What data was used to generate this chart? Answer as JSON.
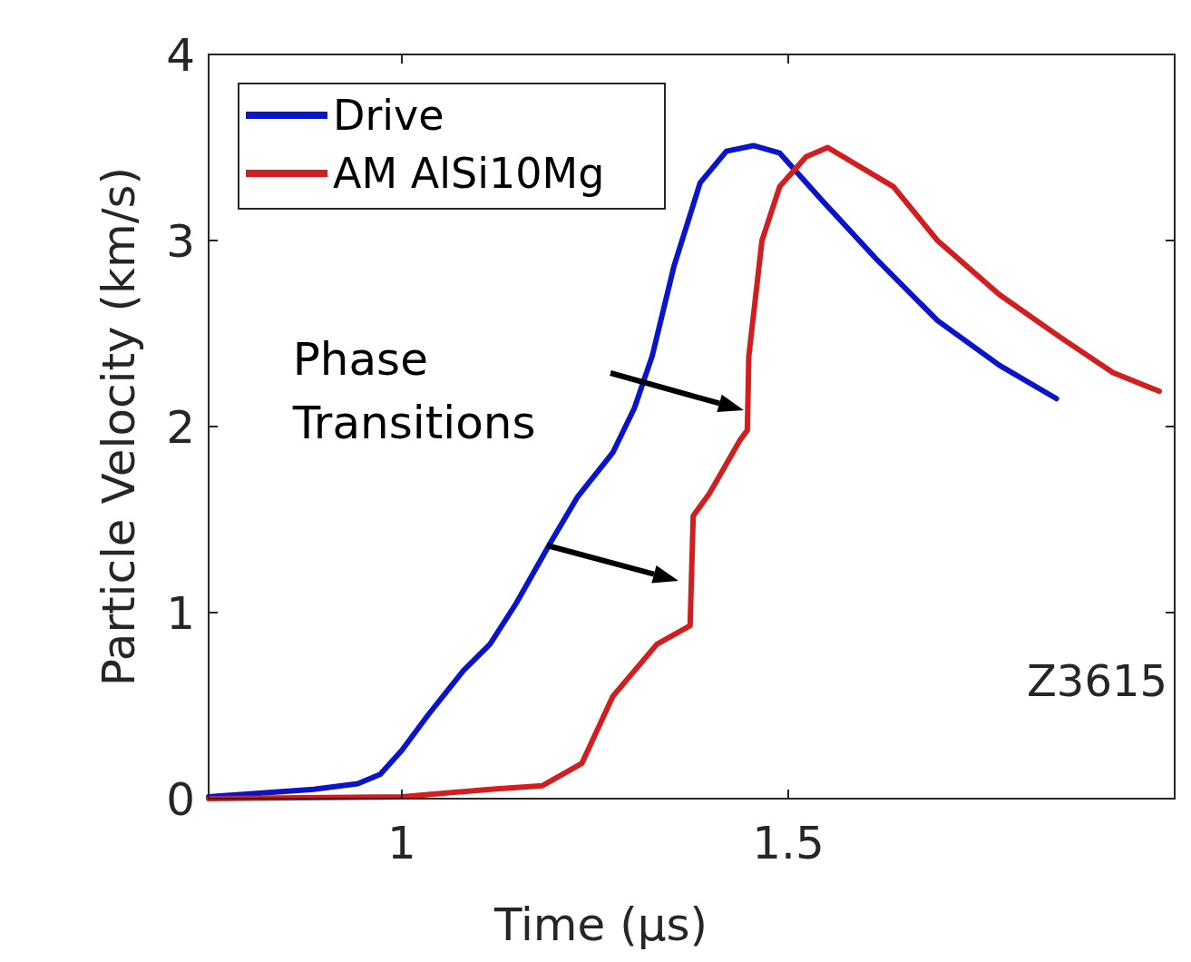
{
  "chart_data": {
    "type": "line",
    "xlabel": "Time (μs)",
    "ylabel": "Particle Velocity (km/s)",
    "xlim": [
      0.75,
      2
    ],
    "ylim": [
      0,
      4
    ],
    "xticks": [
      1,
      1.5
    ],
    "yticks": [
      0,
      1,
      2,
      3,
      4
    ],
    "grid": false,
    "legend": "top left",
    "line_style": "solid",
    "marker": "none",
    "annotations": [
      "Phase Transitions",
      "Z3615"
    ],
    "series": [
      {
        "name": "Drive",
        "color": "#0a14c8",
        "x": [
          0.75,
          0.886,
          0.943,
          0.972,
          1.0,
          1.034,
          1.08,
          1.114,
          1.148,
          1.193,
          1.227,
          1.273,
          1.301,
          1.324,
          1.352,
          1.386,
          1.42,
          1.455,
          1.489,
          1.545,
          1.614,
          1.693,
          1.773,
          1.847
        ],
        "values": [
          0.01,
          0.05,
          0.08,
          0.13,
          0.26,
          0.45,
          0.69,
          0.83,
          1.05,
          1.38,
          1.62,
          1.86,
          2.1,
          2.38,
          2.86,
          3.31,
          3.48,
          3.51,
          3.47,
          3.21,
          2.9,
          2.57,
          2.33,
          2.15
        ]
      },
      {
        "name": "AM AlSi10Mg",
        "color": "#d21e1e",
        "x": [
          0.75,
          1.0,
          1.114,
          1.182,
          1.233,
          1.273,
          1.33,
          1.373,
          1.377,
          1.398,
          1.438,
          1.447,
          1.449,
          1.466,
          1.489,
          1.523,
          1.551,
          1.636,
          1.693,
          1.773,
          1.852,
          1.92,
          1.98
        ],
        "values": [
          0,
          0.01,
          0.05,
          0.07,
          0.19,
          0.55,
          0.83,
          0.93,
          1.52,
          1.64,
          1.93,
          1.98,
          2.38,
          3.0,
          3.29,
          3.45,
          3.5,
          3.29,
          3.0,
          2.71,
          2.48,
          2.29,
          2.19
        ]
      }
    ]
  }
}
